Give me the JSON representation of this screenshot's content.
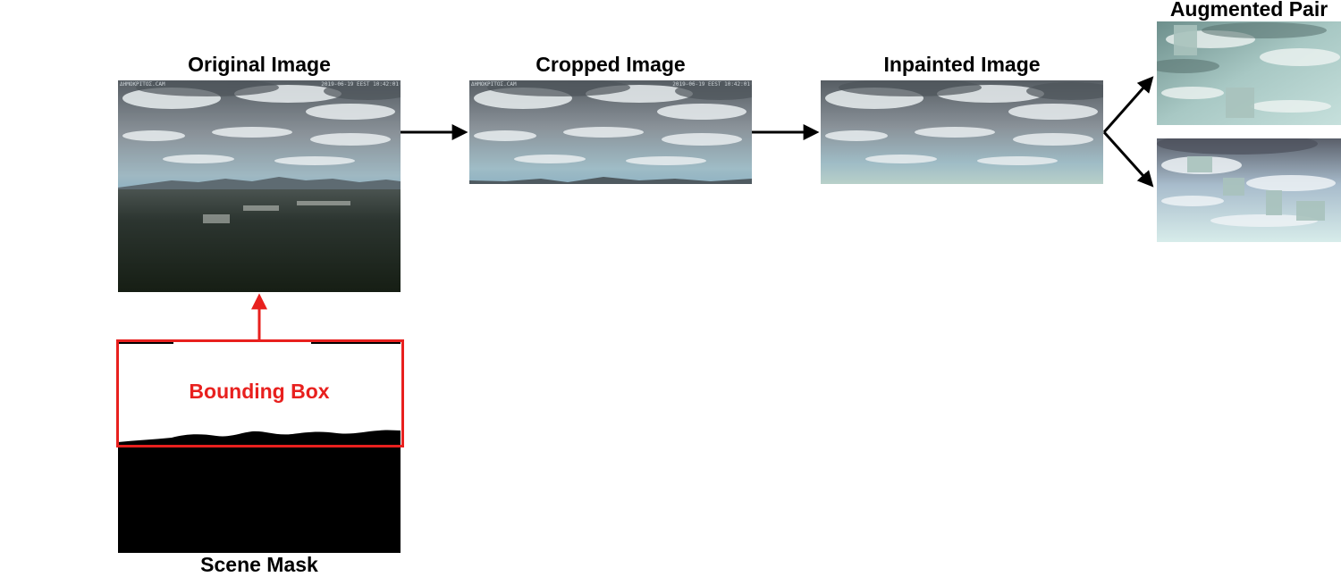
{
  "labels": {
    "original": "Original Image",
    "cropped": "Cropped Image",
    "inpainted": "Inpainted Image",
    "augmented": "Augmented Pair",
    "mask": "Scene Mask",
    "bbox": "Bounding Box"
  },
  "timestamp": {
    "left": "ΔΗΜΟΚΡΙΤΟΣ.CAM",
    "right": "2019-06-19 EEST 10:42:01"
  },
  "colors": {
    "arrow": "#000000",
    "bbox": "#e8201e",
    "mask": "#000000"
  }
}
